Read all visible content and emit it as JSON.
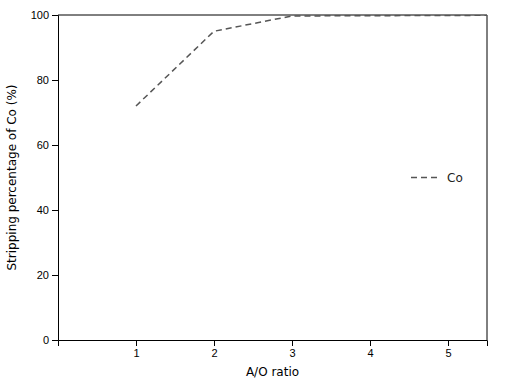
{
  "chart_data": {
    "type": "line",
    "xlabel": "A/O ratio",
    "ylabel": "Stripping percentage of Co (%)",
    "x": [
      1.0,
      2.0,
      3.0,
      5.5
    ],
    "series": [
      {
        "name": "Co",
        "color": "#555555",
        "line_style": "dashed",
        "values": [
          72.0,
          95.0,
          99.7,
          99.9
        ]
      }
    ],
    "xlim": [
      0,
      5.5
    ],
    "ylim": [
      0,
      100
    ],
    "xticks": [
      1,
      2,
      3,
      4,
      5
    ],
    "yticks": [
      0,
      20,
      40,
      60,
      80,
      100
    ],
    "legend": "right",
    "grid": false
  }
}
